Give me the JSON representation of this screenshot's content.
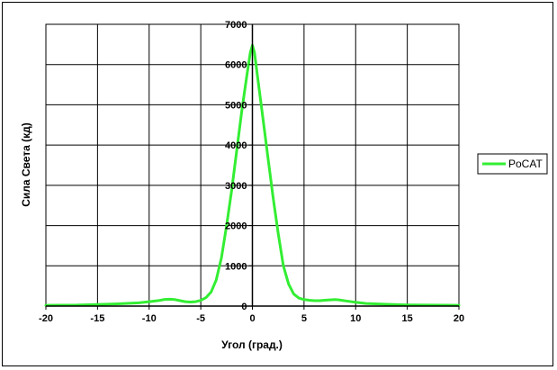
{
  "chart_data": {
    "type": "line",
    "title": "",
    "xlabel": "Угол (град.)",
    "ylabel": "Сила Света (кд)",
    "xlim": [
      -20,
      20
    ],
    "ylim": [
      0,
      7000
    ],
    "x_ticks": [
      -20,
      -15,
      -10,
      -5,
      0,
      5,
      10,
      15,
      20
    ],
    "y_ticks": [
      0,
      1000,
      2000,
      3000,
      4000,
      5000,
      6000,
      7000
    ],
    "grid": true,
    "legend_position": "right",
    "series": [
      {
        "name": "PoCAT",
        "color": "#33ee33",
        "x": [
          -20,
          -17,
          -15,
          -13,
          -11,
          -10,
          -9,
          -8.5,
          -8,
          -7.5,
          -7,
          -6.5,
          -6,
          -5.5,
          -5,
          -4.5,
          -4,
          -3.5,
          -3,
          -2.5,
          -2,
          -1.5,
          -1,
          -0.5,
          -0.2,
          0,
          0.2,
          0.5,
          1,
          1.5,
          2,
          2.5,
          3,
          3.5,
          4,
          4.5,
          5,
          5.5,
          6,
          6.5,
          7,
          7.5,
          8,
          8.5,
          9,
          10,
          11,
          13,
          15,
          17,
          20
        ],
        "y": [
          20,
          25,
          40,
          55,
          80,
          110,
          140,
          165,
          170,
          160,
          135,
          110,
          100,
          110,
          140,
          210,
          350,
          650,
          1200,
          2000,
          2900,
          3900,
          4900,
          5800,
          6300,
          6480,
          6300,
          5700,
          4700,
          3700,
          2700,
          1800,
          1000,
          550,
          300,
          200,
          160,
          145,
          135,
          135,
          145,
          155,
          160,
          150,
          130,
          95,
          65,
          45,
          30,
          25,
          20
        ]
      }
    ]
  }
}
